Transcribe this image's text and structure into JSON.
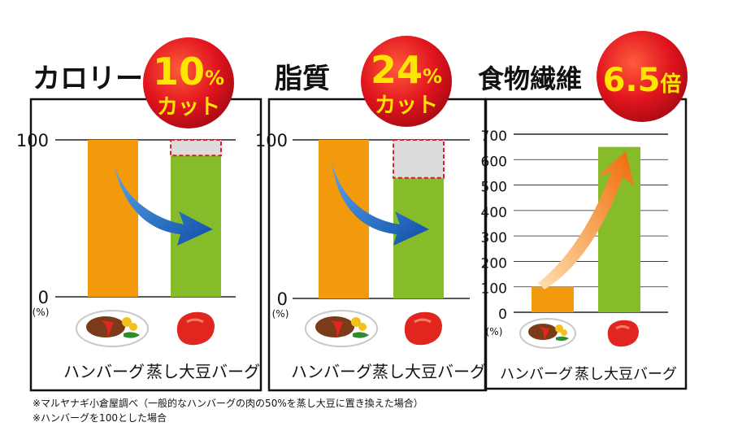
{
  "colors": {
    "hamburger_bar": "#f39a0c",
    "soy_bar": "#86bc2a",
    "cut_area": "#dcdcdc",
    "cut_border": "#d8202b",
    "badge_red": "#e0141e",
    "badge_text": "#ffe600",
    "arrow_down": "#1559b4",
    "arrow_up": "#f07a10"
  },
  "icons": [
    "hamburger-plate-icon",
    "soy-patty-icon",
    "curved-arrow-down-icon",
    "curved-arrow-up-icon"
  ],
  "chart_data": [
    {
      "type": "bar",
      "title": "カロリー",
      "badge": {
        "value": "10",
        "unit": "%",
        "text": "カット"
      },
      "categories": [
        "ハンバーグ",
        "蒸し大豆バーグ"
      ],
      "values": [
        100,
        90
      ],
      "ylim": [
        0,
        100
      ],
      "yticks": [
        "100",
        "0"
      ],
      "ylabel": "(%)",
      "arrow": "down"
    },
    {
      "type": "bar",
      "title": "脂質",
      "badge": {
        "value": "24",
        "unit": "%",
        "text": "カット"
      },
      "categories": [
        "ハンバーグ",
        "蒸し大豆バーグ"
      ],
      "values": [
        100,
        76
      ],
      "ylim": [
        0,
        100
      ],
      "yticks": [
        "100",
        "0"
      ],
      "ylabel": "(%)",
      "arrow": "down"
    },
    {
      "type": "bar",
      "title": "食物繊維",
      "badge": {
        "value": "6.5",
        "unit": "倍",
        "text": ""
      },
      "categories": [
        "ハンバーグ",
        "蒸し大豆バーグ"
      ],
      "values": [
        100,
        650
      ],
      "ylim": [
        0,
        700
      ],
      "yticks": [
        "700",
        "600",
        "500",
        "400",
        "300",
        "200",
        "100",
        "0"
      ],
      "ylabel": "(%)",
      "grid": true,
      "arrow": "up"
    }
  ],
  "footnotes": [
    "※マルヤナギ小倉屋調べ（一般的なハンバーグの肉の50%を蒸し大豆に置き換えた場合）",
    "※ハンバーグを100とした場合"
  ]
}
